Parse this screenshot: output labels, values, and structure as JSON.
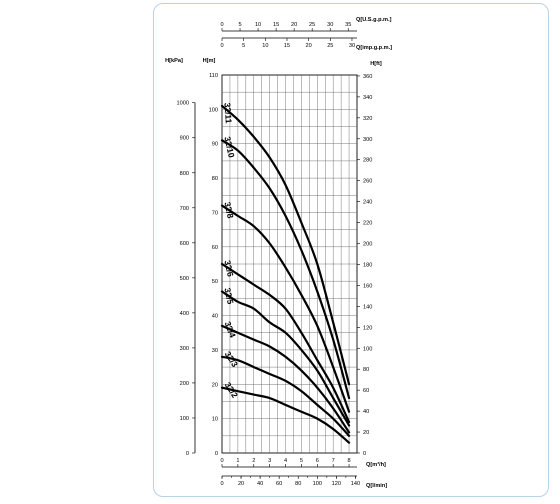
{
  "chart_data": {
    "type": "line",
    "title": "",
    "axes": {
      "x_main": {
        "label": "Q[m³/h]",
        "range": [
          0,
          8.5
        ],
        "ticks": [
          "0",
          "1",
          "2",
          "3",
          "4",
          "5",
          "6",
          "7",
          "8"
        ],
        "tick_values": [
          0,
          1,
          2,
          3,
          4,
          5,
          6,
          7,
          8
        ]
      },
      "x_lmin": {
        "label": "Q[l/min]",
        "ticks": [
          "0",
          "20",
          "40",
          "60",
          "80",
          "100",
          "120",
          "140"
        ],
        "tick_values": [
          0,
          20,
          40,
          60,
          80,
          100,
          120,
          140
        ]
      },
      "x_usgpm": {
        "label": "Q[U.S.g.p.m.]",
        "ticks": [
          "0",
          "5",
          "10",
          "15",
          "20",
          "25",
          "30",
          "35"
        ],
        "tick_values": [
          0,
          5,
          10,
          15,
          20,
          25,
          30,
          35
        ]
      },
      "x_impgpm": {
        "label": "Q[imp.g.p.m.]",
        "ticks": [
          "0",
          "5",
          "10",
          "15",
          "20",
          "25",
          "30"
        ],
        "tick_values": [
          0,
          5,
          10,
          15,
          20,
          25,
          30
        ]
      },
      "y_m": {
        "label": "H[m]",
        "range": [
          0,
          110
        ],
        "ticks": [
          "0",
          "10",
          "20",
          "30",
          "40",
          "50",
          "60",
          "70",
          "80",
          "90",
          "100",
          "110"
        ],
        "tick_values": [
          0,
          10,
          20,
          30,
          40,
          50,
          60,
          70,
          80,
          90,
          100,
          110
        ]
      },
      "y_kpa": {
        "label": "H[kPa]",
        "ticks": [
          "0",
          "100",
          "200",
          "300",
          "400",
          "500",
          "600",
          "700",
          "800",
          "900",
          "1000"
        ],
        "tick_values": [
          0,
          100,
          200,
          300,
          400,
          500,
          600,
          700,
          800,
          900,
          1000
        ]
      },
      "y_ft": {
        "label": "H[ft]",
        "ticks": [
          "0",
          "20",
          "40",
          "60",
          "80",
          "100",
          "120",
          "140",
          "160",
          "180",
          "200",
          "220",
          "240",
          "260",
          "280",
          "300",
          "320",
          "340",
          "360"
        ],
        "tick_values": [
          0,
          20,
          40,
          60,
          80,
          100,
          120,
          140,
          160,
          180,
          200,
          220,
          240,
          260,
          280,
          300,
          320,
          340,
          360
        ]
      }
    },
    "grid": true,
    "series": [
      {
        "name": "32/11",
        "x": [
          0,
          1,
          2,
          3,
          4,
          5,
          6,
          7,
          8
        ],
        "y": [
          101,
          97,
          92,
          86,
          78,
          67,
          55,
          38,
          20
        ]
      },
      {
        "name": "32/10",
        "x": [
          0,
          1,
          2,
          3,
          4,
          5,
          6,
          7,
          8
        ],
        "y": [
          91,
          88,
          83,
          77,
          69,
          59,
          47,
          33,
          16
        ]
      },
      {
        "name": "32/8",
        "x": [
          0,
          1,
          2,
          3,
          4,
          5,
          6,
          7,
          8
        ],
        "y": [
          72,
          69,
          66,
          61,
          54,
          46,
          37,
          25,
          12
        ]
      },
      {
        "name": "32/6",
        "x": [
          0,
          1,
          2,
          3,
          4,
          5,
          6,
          7,
          8
        ],
        "y": [
          55,
          52,
          49,
          46,
          42,
          35,
          27,
          19,
          9
        ]
      },
      {
        "name": "32/5",
        "x": [
          0,
          1,
          2,
          3,
          4,
          5,
          6,
          7,
          8
        ],
        "y": [
          47,
          44,
          42,
          38,
          35,
          30,
          24,
          16,
          8
        ]
      },
      {
        "name": "32/4",
        "x": [
          0,
          1,
          2,
          3,
          4,
          5,
          6,
          7,
          8
        ],
        "y": [
          37,
          35,
          33,
          31,
          28,
          24,
          19,
          13,
          6
        ]
      },
      {
        "name": "32/3",
        "x": [
          0,
          1,
          2,
          3,
          4,
          5,
          6,
          7,
          8
        ],
        "y": [
          28,
          27,
          25,
          23,
          21,
          18,
          14,
          10,
          5
        ]
      },
      {
        "name": "32/2",
        "x": [
          0,
          1,
          2,
          3,
          4,
          5,
          6,
          7,
          8
        ],
        "y": [
          19,
          18,
          17,
          16,
          14,
          12,
          10,
          7,
          3
        ]
      }
    ]
  }
}
